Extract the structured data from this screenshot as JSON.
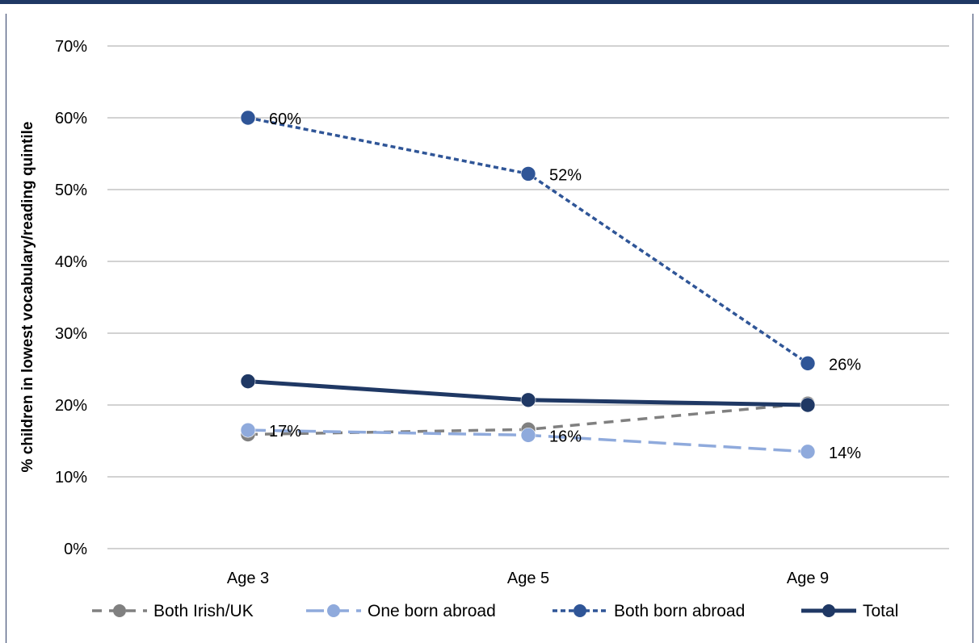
{
  "chart_data": {
    "type": "line",
    "title": "",
    "xlabel": "",
    "ylabel": "% children in lowest vocabulary/reading quintile",
    "categories": [
      "Age 3",
      "Age 5",
      "Age 9"
    ],
    "ylim": [
      0,
      70
    ],
    "yticks": [
      0,
      10,
      20,
      30,
      40,
      50,
      60,
      70
    ],
    "ytick_labels": [
      "0%",
      "10%",
      "20%",
      "30%",
      "40%",
      "50%",
      "60%",
      "70%"
    ],
    "grid": true,
    "legend_position": "bottom",
    "series": [
      {
        "name": "Both Irish/UK",
        "values": [
          15.9,
          16.6,
          20.2
        ],
        "labels": [
          "",
          "",
          ""
        ],
        "color": "#808080",
        "style": "dashed"
      },
      {
        "name": "One born abroad",
        "values": [
          16.5,
          15.8,
          13.5
        ],
        "labels": [
          "17%",
          "16%",
          "14%"
        ],
        "color": "#8faadc",
        "style": "long-dash"
      },
      {
        "name": "Both born abroad",
        "values": [
          60,
          52.2,
          25.8
        ],
        "labels": [
          "60%",
          "52%",
          "26%"
        ],
        "color": "#2f5597",
        "style": "short-dash"
      },
      {
        "name": "Total",
        "values": [
          23.3,
          20.7,
          20
        ],
        "labels": [
          "",
          "",
          ""
        ],
        "color": "#1f3864",
        "style": "solid"
      }
    ]
  }
}
